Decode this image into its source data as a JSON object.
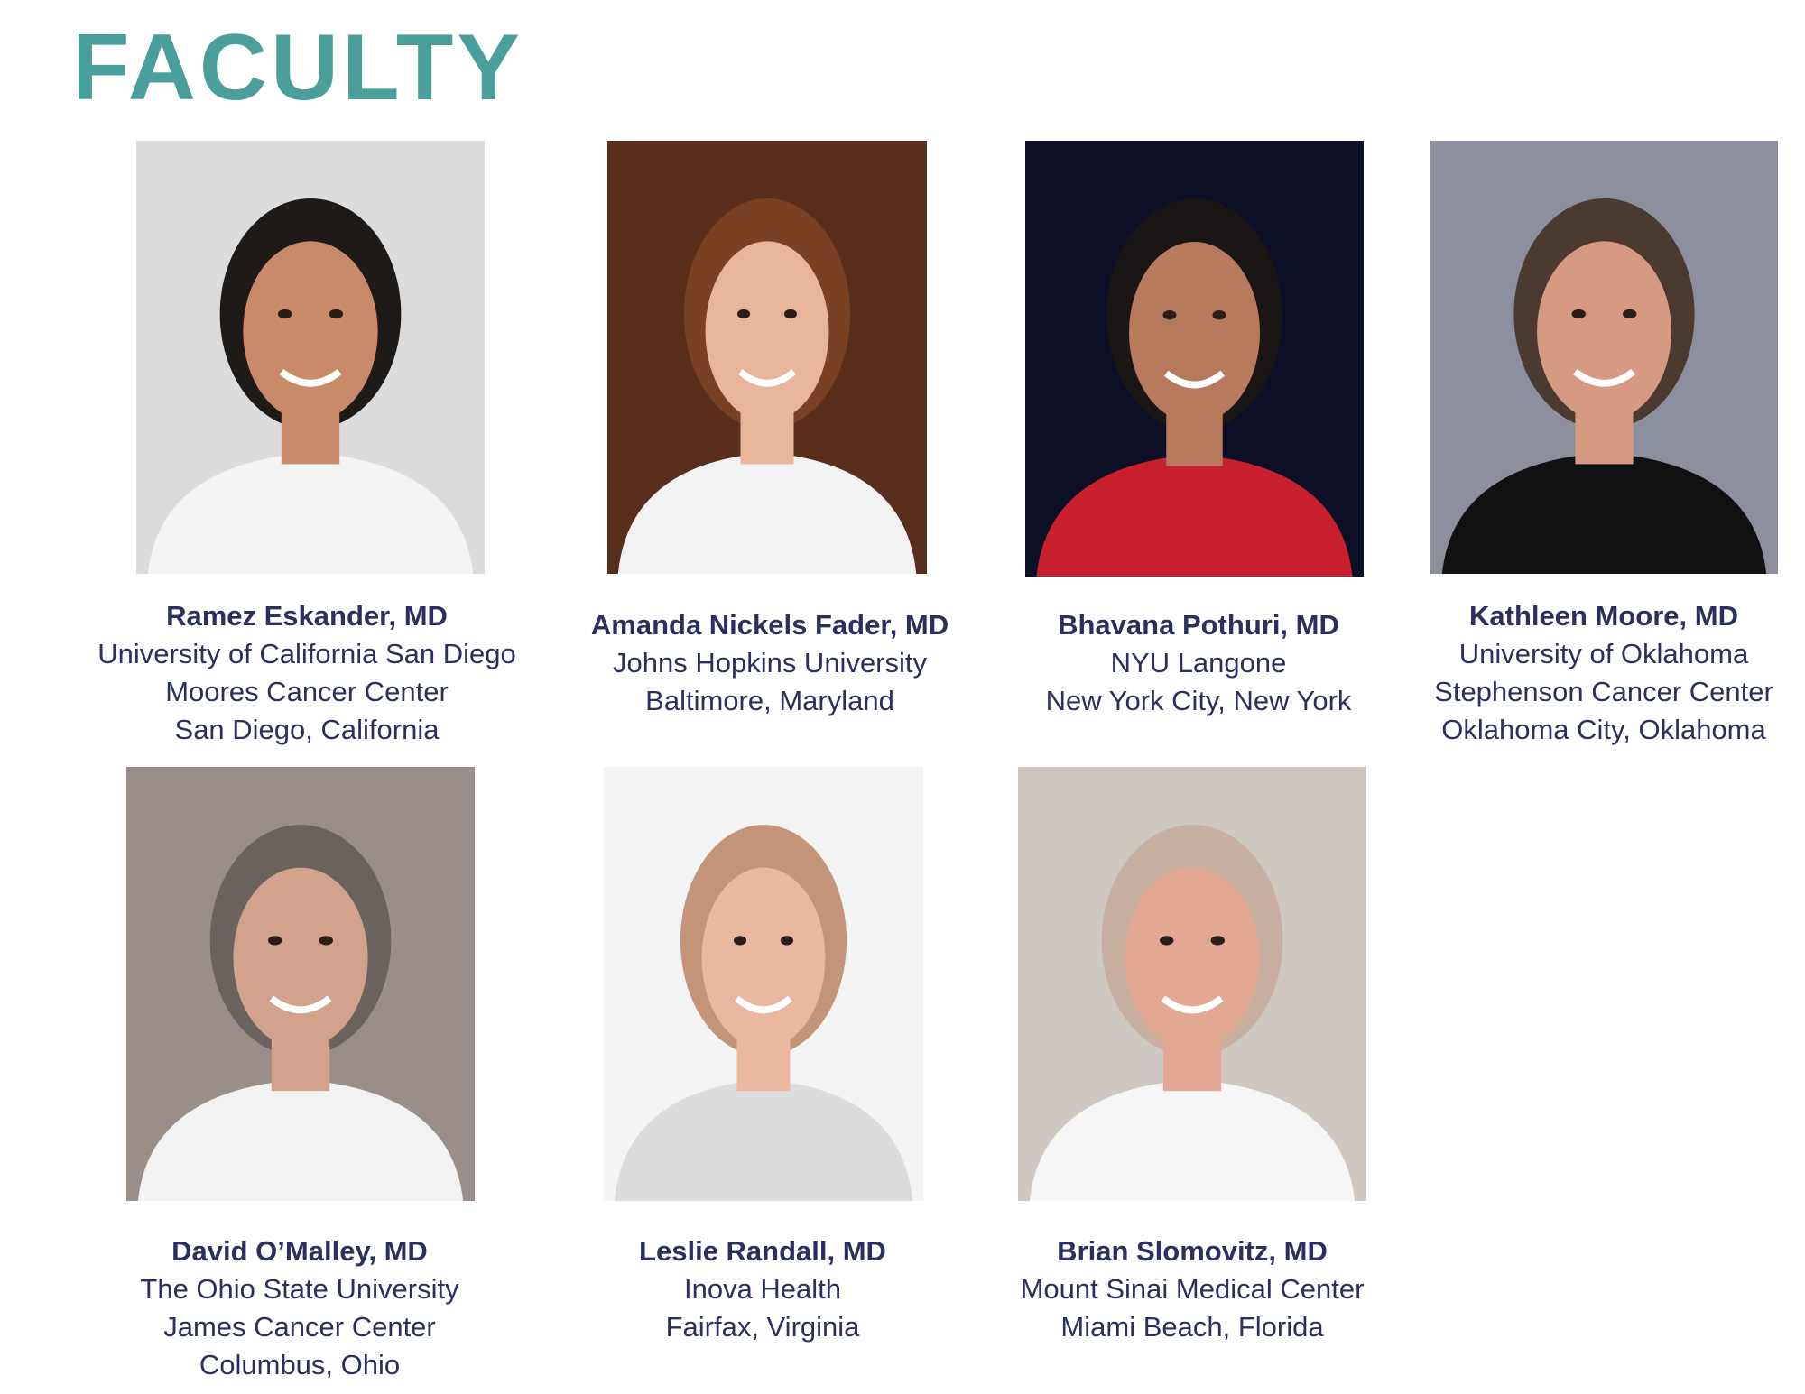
{
  "page": {
    "title": "FACULTY",
    "accent_color": "#4a9e9b",
    "text_color": "#2b2f5e"
  },
  "faculty": [
    {
      "name": "Ramez Eskander, MD",
      "lines": [
        "University of California San Diego",
        "Moores Cancer Center",
        "San Diego, California"
      ],
      "photo_bg": "#dcdcdc",
      "skin": "#c98a6a",
      "hair": "#1e1a18",
      "clothing": "#f4f4f4"
    },
    {
      "name": "Amanda Nickels Fader, MD",
      "lines": [
        "Johns Hopkins University",
        "Baltimore, Maryland"
      ],
      "photo_bg": "#5a2e1c",
      "skin": "#e8b49a",
      "hair": "#7a4024",
      "clothing": "#f2f2f2"
    },
    {
      "name": "Bhavana Pothuri, MD",
      "lines": [
        "NYU Langone",
        "New York City, New York"
      ],
      "photo_bg": "#0c0f26",
      "skin": "#b87a5c",
      "hair": "#1a1616",
      "clothing": "#c8202c"
    },
    {
      "name": "Kathleen Moore, MD",
      "lines": [
        "University of Oklahoma",
        "Stephenson Cancer Center",
        "Oklahoma City, Oklahoma"
      ],
      "photo_bg": "#8d8e9e",
      "skin": "#d69a82",
      "hair": "#4a3a30",
      "clothing": "#111111"
    },
    {
      "name": "David O’Malley, MD",
      "lines": [
        "The Ohio State University",
        "James Cancer Center",
        "Columbus, Ohio"
      ],
      "photo_bg": "#9a8f88",
      "skin": "#d2a28c",
      "hair": "#6a625c",
      "clothing": "#f2f2f2"
    },
    {
      "name": "Leslie Randall, MD",
      "lines": [
        "Inova Health",
        "Fairfax, Virginia"
      ],
      "photo_bg": "#f4f4f4",
      "skin": "#eab8a0",
      "hair": "#c49478",
      "clothing": "#dcdcdc"
    },
    {
      "name": "Brian Slomovitz, MD",
      "lines": [
        "Mount Sinai Medical Center",
        "Miami Beach, Florida"
      ],
      "photo_bg": "#cfc8c0",
      "skin": "#e2a894",
      "hair": "#c8b0a0",
      "clothing": "#f6f6f6"
    }
  ]
}
